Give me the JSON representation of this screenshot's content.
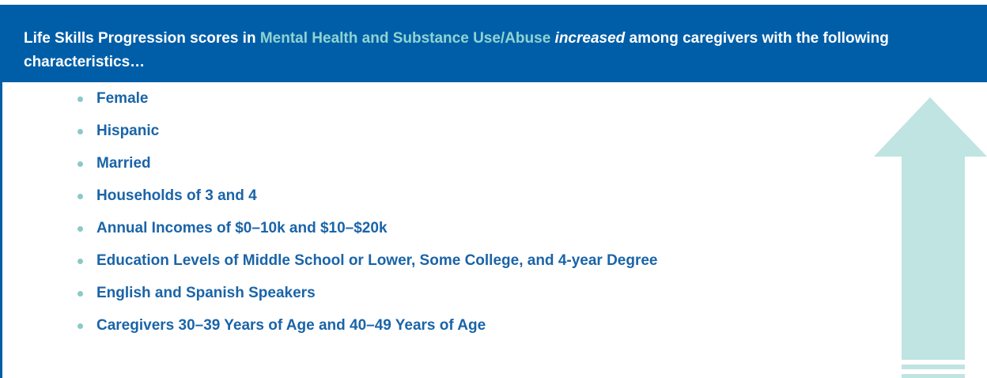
{
  "header": {
    "segments": [
      {
        "text": "Life Skills Progression scores in "
      },
      {
        "text": "Mental Health and Substance Use/Abuse"
      },
      {
        "text": " "
      },
      {
        "text": "increased"
      },
      {
        "text": " among caregivers with the following characteristics…"
      }
    ]
  },
  "list": {
    "items": [
      "Female",
      "Hispanic",
      "Married",
      "Households of 3 and 4",
      "Annual Incomes of $0–10k and $10–$20k",
      "Education Levels of Middle School or Lower, Some College, and 4-year Degree",
      "English and Spanish Speakers",
      "Caregivers 30–39 Years of Age and 40–49 Years of Age"
    ]
  }
}
